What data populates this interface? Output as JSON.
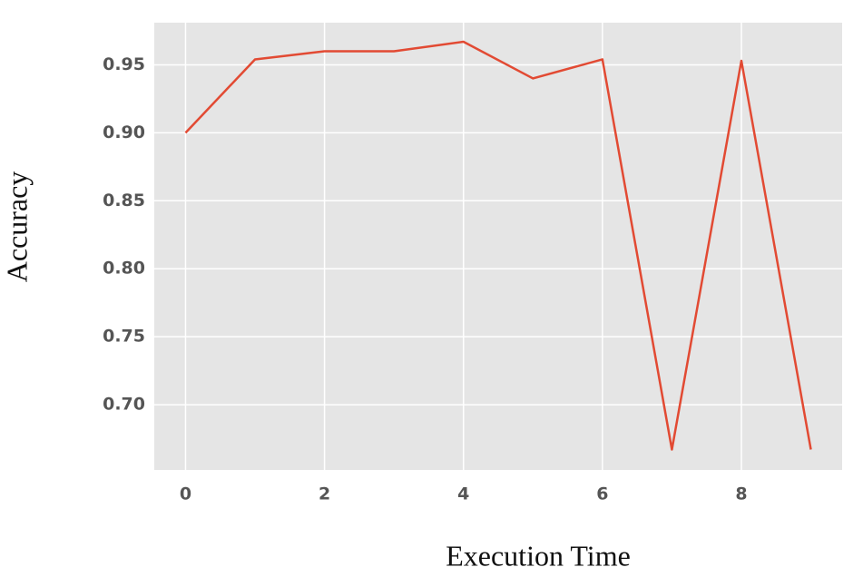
{
  "chart_data": {
    "type": "line",
    "x_label": "Execution Time",
    "y_label": "Accuracy",
    "x": [
      0,
      1,
      2,
      3,
      4,
      5,
      6,
      7,
      8,
      9
    ],
    "series": [
      {
        "name": "Accuracy",
        "color": "#e24a33",
        "values": [
          0.9,
          0.954,
          0.96,
          0.96,
          0.967,
          0.94,
          0.954,
          0.667,
          0.953,
          0.667
        ]
      }
    ],
    "xlim": [
      -0.45,
      9.45
    ],
    "ylim": [
      0.652,
      0.981
    ],
    "xticks": [
      0,
      2,
      4,
      6,
      8
    ],
    "yticks": [
      {
        "value": 0.7,
        "label": "0.70"
      },
      {
        "value": 0.75,
        "label": "0.75"
      },
      {
        "value": 0.8,
        "label": "0.80"
      },
      {
        "value": 0.85,
        "label": "0.85"
      },
      {
        "value": 0.9,
        "label": "0.90"
      },
      {
        "value": 0.95,
        "label": "0.95"
      }
    ],
    "grid": true,
    "background": "#e5e5e5",
    "grid_color": "#ffffff"
  }
}
